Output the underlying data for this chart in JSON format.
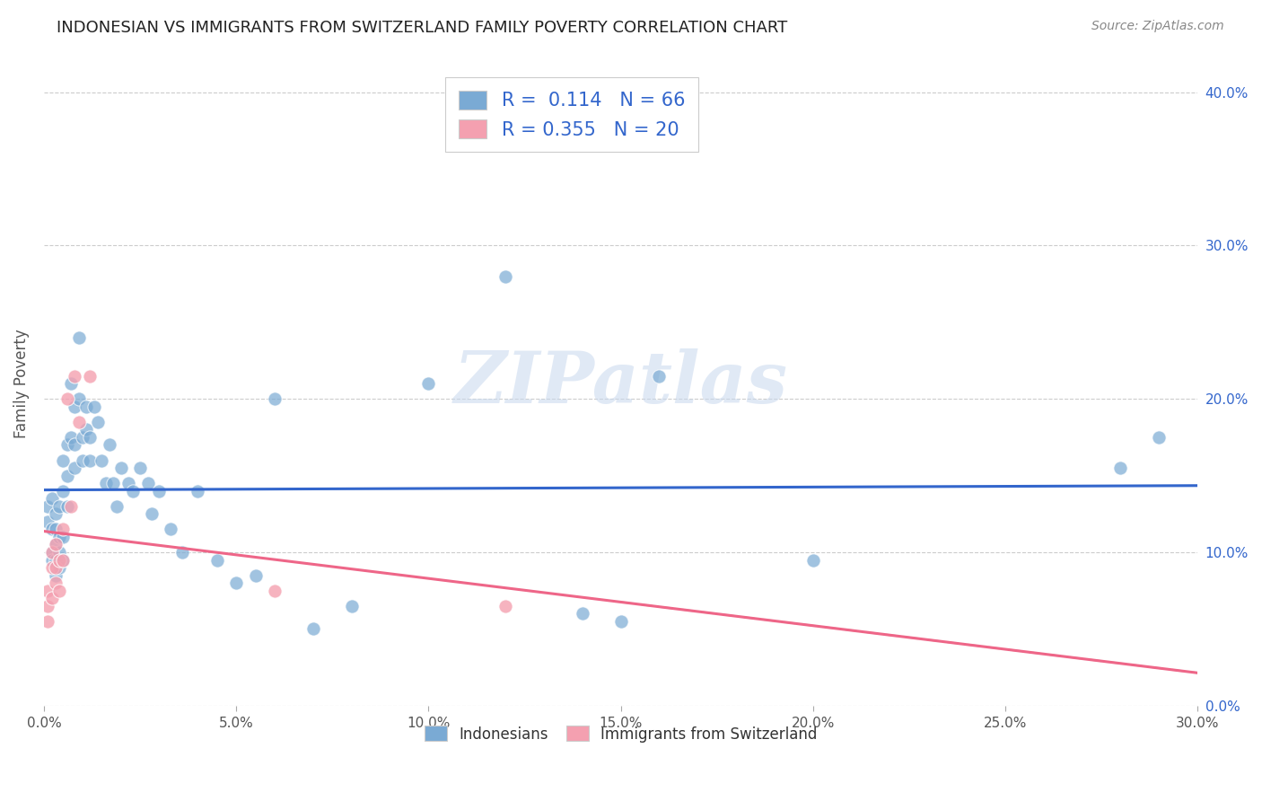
{
  "title": "INDONESIAN VS IMMIGRANTS FROM SWITZERLAND FAMILY POVERTY CORRELATION CHART",
  "source": "Source: ZipAtlas.com",
  "ylabel": "Family Poverty",
  "xlim": [
    0.0,
    0.3
  ],
  "ylim": [
    0.0,
    0.42
  ],
  "xticks": [
    0.0,
    0.05,
    0.1,
    0.15,
    0.2,
    0.25,
    0.3
  ],
  "xtick_labels": [
    "0.0%",
    "5.0%",
    "10.0%",
    "15.0%",
    "20.0%",
    "25.0%",
    "30.0%"
  ],
  "yticks": [
    0.0,
    0.1,
    0.2,
    0.3,
    0.4
  ],
  "ytick_labels": [
    "0.0%",
    "10.0%",
    "20.0%",
    "30.0%",
    "40.0%"
  ],
  "legend_bottom": [
    "Indonesians",
    "Immigrants from Switzerland"
  ],
  "blue_R": "0.114",
  "blue_N": "66",
  "pink_R": "0.355",
  "pink_N": "20",
  "blue_color": "#7aaad4",
  "pink_color": "#f4a0b0",
  "blue_line_color": "#3366cc",
  "pink_line_color": "#ee6688",
  "watermark": "ZIPatlas",
  "blue_scatter_x": [
    0.001,
    0.001,
    0.002,
    0.002,
    0.002,
    0.002,
    0.003,
    0.003,
    0.003,
    0.003,
    0.003,
    0.004,
    0.004,
    0.004,
    0.004,
    0.005,
    0.005,
    0.005,
    0.005,
    0.006,
    0.006,
    0.006,
    0.007,
    0.007,
    0.008,
    0.008,
    0.008,
    0.009,
    0.009,
    0.01,
    0.01,
    0.011,
    0.011,
    0.012,
    0.012,
    0.013,
    0.014,
    0.015,
    0.016,
    0.017,
    0.018,
    0.019,
    0.02,
    0.022,
    0.023,
    0.025,
    0.027,
    0.028,
    0.03,
    0.033,
    0.036,
    0.04,
    0.045,
    0.05,
    0.055,
    0.06,
    0.07,
    0.08,
    0.1,
    0.12,
    0.14,
    0.15,
    0.16,
    0.2,
    0.28,
    0.29
  ],
  "blue_scatter_y": [
    0.13,
    0.12,
    0.135,
    0.115,
    0.1,
    0.095,
    0.125,
    0.115,
    0.105,
    0.095,
    0.085,
    0.13,
    0.11,
    0.1,
    0.09,
    0.16,
    0.14,
    0.11,
    0.095,
    0.17,
    0.15,
    0.13,
    0.21,
    0.175,
    0.195,
    0.17,
    0.155,
    0.24,
    0.2,
    0.175,
    0.16,
    0.195,
    0.18,
    0.175,
    0.16,
    0.195,
    0.185,
    0.16,
    0.145,
    0.17,
    0.145,
    0.13,
    0.155,
    0.145,
    0.14,
    0.155,
    0.145,
    0.125,
    0.14,
    0.115,
    0.1,
    0.14,
    0.095,
    0.08,
    0.085,
    0.2,
    0.05,
    0.065,
    0.21,
    0.28,
    0.06,
    0.055,
    0.215,
    0.095,
    0.155,
    0.175
  ],
  "pink_scatter_x": [
    0.001,
    0.001,
    0.001,
    0.002,
    0.002,
    0.002,
    0.003,
    0.003,
    0.003,
    0.004,
    0.004,
    0.005,
    0.005,
    0.006,
    0.007,
    0.008,
    0.009,
    0.012,
    0.06,
    0.12
  ],
  "pink_scatter_y": [
    0.055,
    0.065,
    0.075,
    0.07,
    0.09,
    0.1,
    0.08,
    0.09,
    0.105,
    0.095,
    0.075,
    0.115,
    0.095,
    0.2,
    0.13,
    0.215,
    0.185,
    0.215,
    0.075,
    0.065
  ]
}
